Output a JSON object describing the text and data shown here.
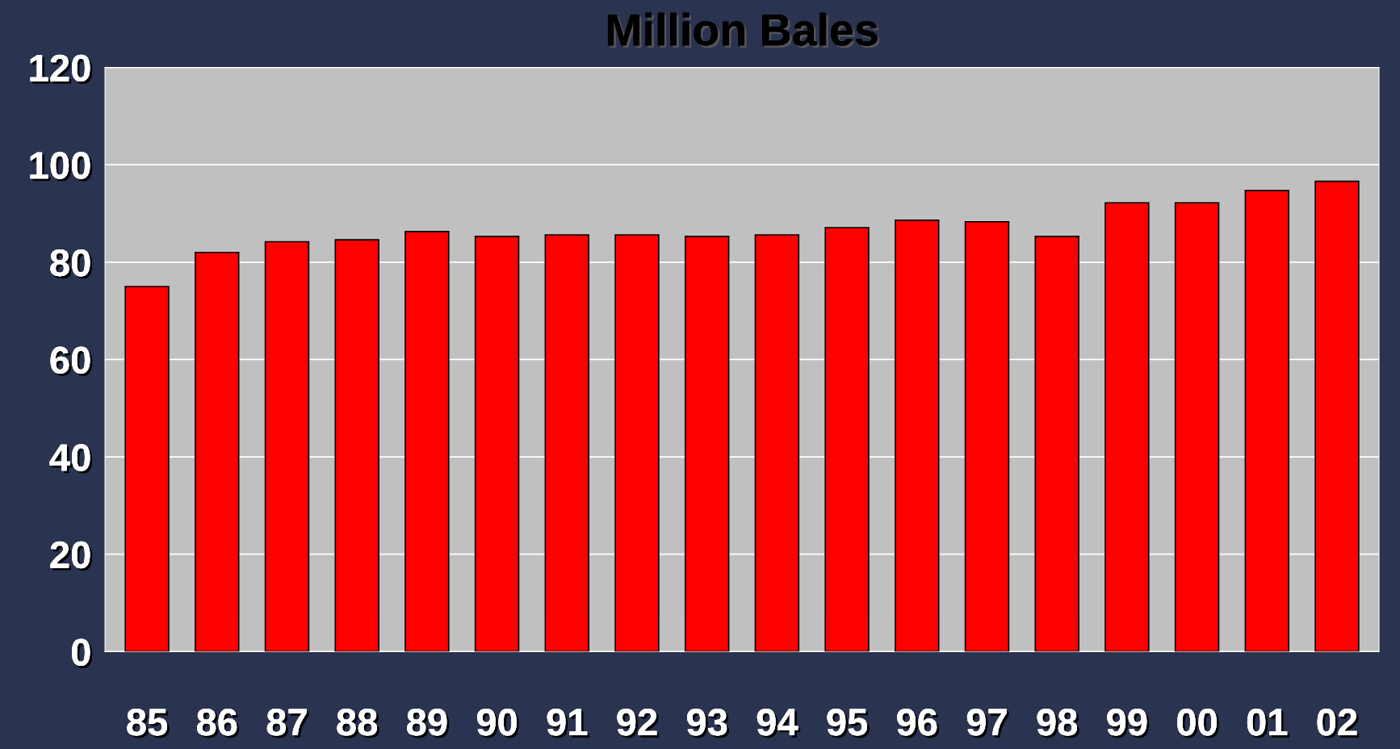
{
  "chart_data": {
    "type": "bar",
    "title": "Million Bales",
    "categories": [
      "85",
      "86",
      "87",
      "88",
      "89",
      "90",
      "91",
      "92",
      "93",
      "94",
      "95",
      "96",
      "97",
      "98",
      "99",
      "00",
      "01",
      "02"
    ],
    "values": [
      75,
      82,
      84.2,
      84.6,
      86.3,
      85.3,
      85.6,
      85.6,
      85.3,
      85.6,
      87.1,
      88.6,
      88.3,
      85.3,
      92.2,
      92.2,
      94.7,
      96.6
    ],
    "color": "#ff0000",
    "ylim": [
      0,
      120
    ],
    "yticks": [
      0,
      20,
      40,
      60,
      80,
      100,
      120
    ],
    "grid": "y"
  }
}
